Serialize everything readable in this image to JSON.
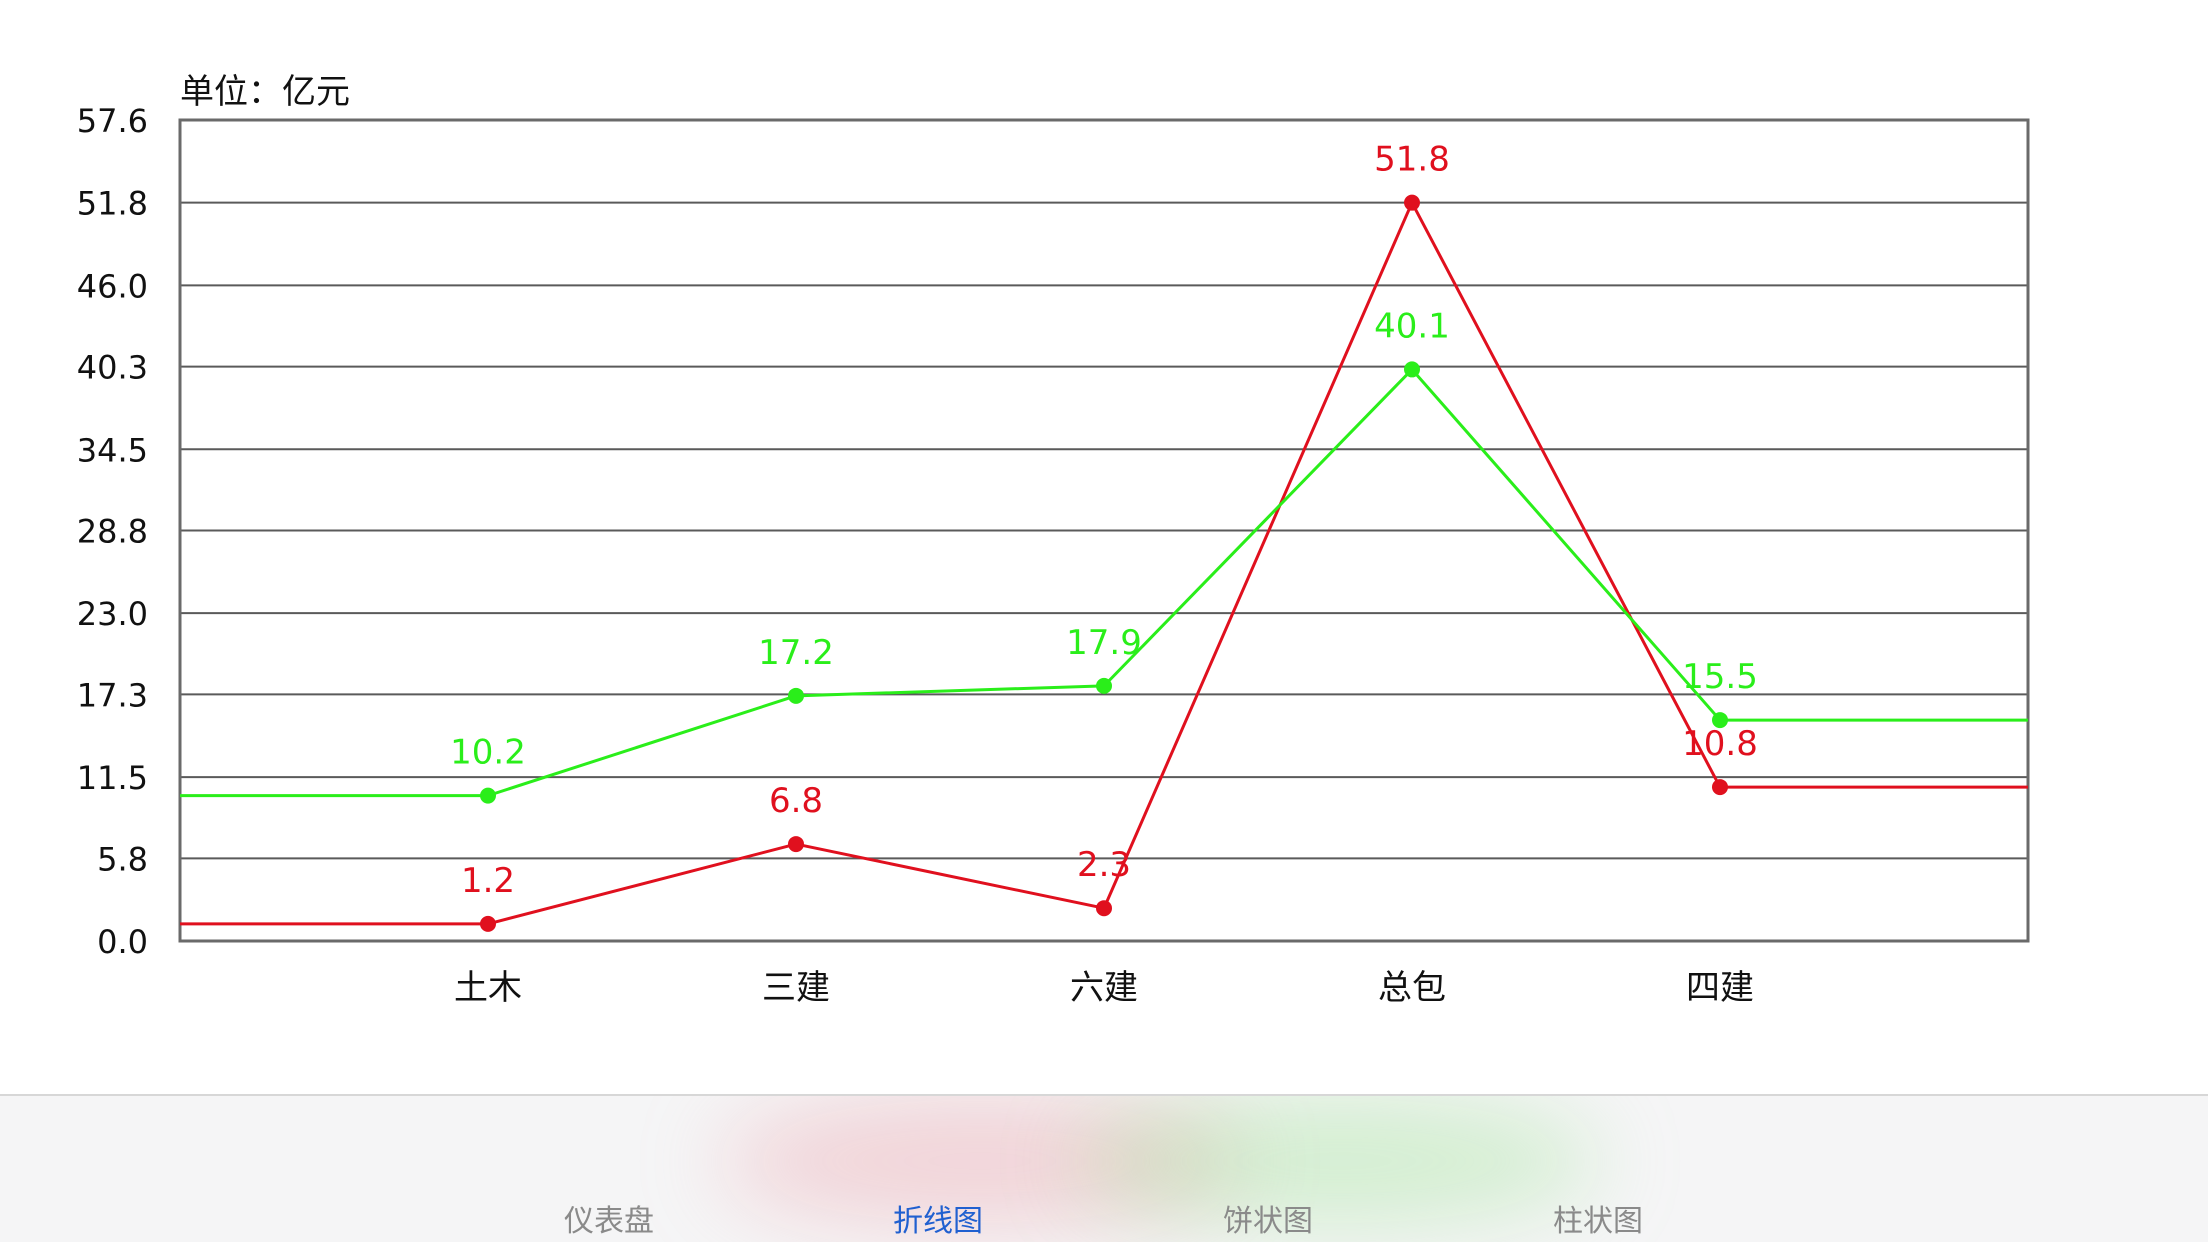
{
  "chart_data": {
    "type": "line",
    "unit_label": "单位：亿元",
    "categories": [
      "土木",
      "三建",
      "六建",
      "总包",
      "四建"
    ],
    "y_ticks": [
      "0.0",
      "5.8",
      "11.5",
      "17.3",
      "23.0",
      "28.8",
      "34.5",
      "40.3",
      "46.0",
      "51.8",
      "57.6"
    ],
    "ylim": [
      0,
      57.6
    ],
    "grid": true,
    "series": [
      {
        "color": "#e0101e",
        "values": [
          1.2,
          6.8,
          2.3,
          51.8,
          10.8
        ],
        "labels": [
          "1.2",
          "6.8",
          "2.3",
          "51.8",
          "10.8"
        ]
      },
      {
        "color": "#2aee1a",
        "values": [
          10.2,
          17.2,
          17.9,
          40.1,
          15.5
        ],
        "labels": [
          "10.2",
          "17.2",
          "17.9",
          "40.1",
          "15.5"
        ]
      }
    ]
  },
  "tabbar": {
    "tabs": [
      {
        "label": "仪表盘",
        "active": false
      },
      {
        "label": "折线图",
        "active": true
      },
      {
        "label": "饼状图",
        "active": false
      },
      {
        "label": "柱状图",
        "active": false
      }
    ],
    "active_color": "#2060d0",
    "inactive_color": "#8a8a8a"
  }
}
